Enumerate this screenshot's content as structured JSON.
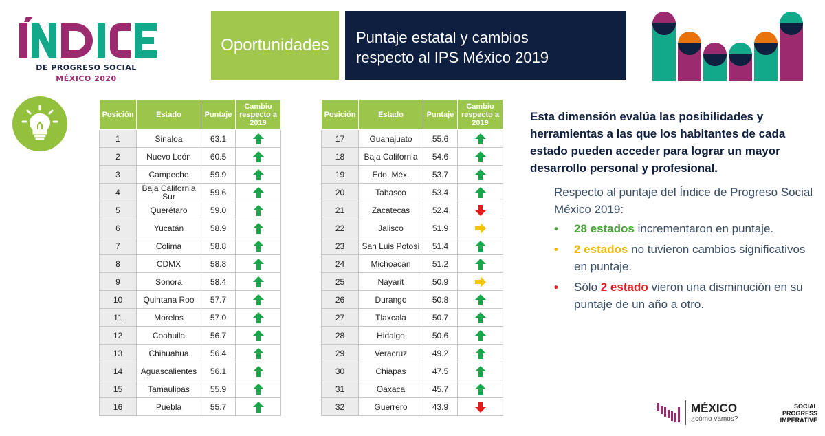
{
  "logo": {
    "word": "ÍNDICE",
    "line1": "DE PROGRESO SOCIAL",
    "line2": "MÉXICO 2020"
  },
  "header": {
    "dimension": "Oportunidades",
    "title_line1": "Puntaje estatal y cambios",
    "title_line2": "respecto al IPS México 2019"
  },
  "icons": {
    "dimension_icon": "lightbulb-icon",
    "brand_color_green": "#9bc64b",
    "brand_color_navy": "#0f1f3f"
  },
  "table": {
    "headers": {
      "position": "Posición",
      "state": "Estado",
      "score": "Puntaje",
      "change_l1": "Cambio",
      "change_l2": "respecto a",
      "change_l3": "2019"
    },
    "left_rows": [
      {
        "pos": "1",
        "state": "Sinaloa",
        "score": "63.1",
        "change": "up"
      },
      {
        "pos": "2",
        "state": "Nuevo León",
        "score": "60.5",
        "change": "up"
      },
      {
        "pos": "3",
        "state": "Campeche",
        "score": "59.9",
        "change": "up"
      },
      {
        "pos": "4",
        "state": "Baja California Sur",
        "score": "59.6",
        "change": "up"
      },
      {
        "pos": "5",
        "state": "Querétaro",
        "score": "59.0",
        "change": "up"
      },
      {
        "pos": "6",
        "state": "Yucatán",
        "score": "58.9",
        "change": "up"
      },
      {
        "pos": "7",
        "state": "Colima",
        "score": "58.8",
        "change": "up"
      },
      {
        "pos": "8",
        "state": "CDMX",
        "score": "58.8",
        "change": "up"
      },
      {
        "pos": "9",
        "state": "Sonora",
        "score": "58.4",
        "change": "up"
      },
      {
        "pos": "10",
        "state": "Quintana Roo",
        "score": "57.7",
        "change": "up"
      },
      {
        "pos": "11",
        "state": "Morelos",
        "score": "57.0",
        "change": "up"
      },
      {
        "pos": "12",
        "state": "Coahuila",
        "score": "56.7",
        "change": "up"
      },
      {
        "pos": "13",
        "state": "Chihuahua",
        "score": "56.4",
        "change": "up"
      },
      {
        "pos": "14",
        "state": "Aguascalientes",
        "score": "56.1",
        "change": "up"
      },
      {
        "pos": "15",
        "state": "Tamaulipas",
        "score": "55.9",
        "change": "up"
      },
      {
        "pos": "16",
        "state": "Puebla",
        "score": "55.7",
        "change": "up"
      }
    ],
    "right_rows": [
      {
        "pos": "17",
        "state": "Guanajuato",
        "score": "55.6",
        "change": "up"
      },
      {
        "pos": "18",
        "state": "Baja California",
        "score": "54.6",
        "change": "up"
      },
      {
        "pos": "19",
        "state": "Edo. Méx.",
        "score": "53.7",
        "change": "up"
      },
      {
        "pos": "20",
        "state": "Tabasco",
        "score": "53.4",
        "change": "up"
      },
      {
        "pos": "21",
        "state": "Zacatecas",
        "score": "52.4",
        "change": "down"
      },
      {
        "pos": "22",
        "state": "Jalisco",
        "score": "51.9",
        "change": "same"
      },
      {
        "pos": "23",
        "state": "San Luis Potosí",
        "score": "51.4",
        "change": "up"
      },
      {
        "pos": "24",
        "state": "Michoacán",
        "score": "51.2",
        "change": "up"
      },
      {
        "pos": "25",
        "state": "Nayarit",
        "score": "50.9",
        "change": "same"
      },
      {
        "pos": "26",
        "state": "Durango",
        "score": "50.8",
        "change": "up"
      },
      {
        "pos": "27",
        "state": "Tlaxcala",
        "score": "50.7",
        "change": "up"
      },
      {
        "pos": "28",
        "state": "Hidalgo",
        "score": "50.6",
        "change": "up"
      },
      {
        "pos": "29",
        "state": "Veracruz",
        "score": "49.2",
        "change": "up"
      },
      {
        "pos": "30",
        "state": "Chiapas",
        "score": "47.5",
        "change": "up"
      },
      {
        "pos": "31",
        "state": "Oaxaca",
        "score": "45.7",
        "change": "up"
      },
      {
        "pos": "32",
        "state": "Guerrero",
        "score": "43.9",
        "change": "down"
      }
    ]
  },
  "arrow_colors": {
    "up": "#1aa64a",
    "down": "#e31b1b",
    "same": "#f5c400"
  },
  "description": "Esta dimensión evalúa las posibilidades y herramientas a las que los habitantes de cada estado pueden acceder para lograr un mayor desarrollo personal y profesional.",
  "intro": "Respecto al puntaje del Índice de Progreso Social México 2019:",
  "bullets": [
    {
      "highlight": "28 estados",
      "before": "",
      "after": " incrementaron en puntaje.",
      "color": "green"
    },
    {
      "highlight": "2 estados",
      "before": "",
      "after": " no tuvieron cambios significativos en puntaje.",
      "color": "yellow"
    },
    {
      "highlight": "2 estado",
      "before": "Sólo ",
      "after": " vieron una disminución en su puntaje de un año a otro.",
      "color": "red"
    }
  ],
  "footer": {
    "mcv_name": "MÉXICO",
    "mcv_tag": "¿cómo vamos?",
    "spi_l1": "SOCIAL",
    "spi_l2": "PROGRESS",
    "spi_l3": "IMPERATIVE"
  }
}
